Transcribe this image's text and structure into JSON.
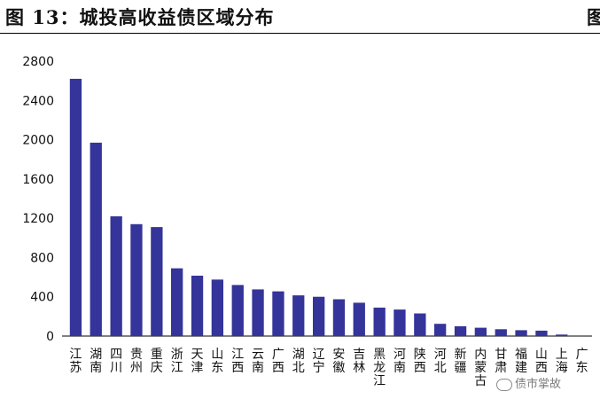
{
  "figure": {
    "title": "图 13：城投高收益债区域分布",
    "title_right_fragment": "图"
  },
  "watermark": {
    "text": "债市掌故"
  },
  "colors": {
    "bar": "#34349a",
    "axis": "#000000"
  },
  "chart_data": {
    "type": "bar",
    "title": "",
    "xlabel": "",
    "ylabel": "",
    "ylim": [
      0,
      2800
    ],
    "yticks": [
      0,
      400,
      800,
      1200,
      1600,
      2000,
      2400,
      2800
    ],
    "grid": false,
    "categories": [
      "江苏",
      "湖南",
      "四川",
      "贵州",
      "重庆",
      "浙江",
      "天津",
      "山东",
      "江西",
      "云南",
      "广西",
      "湖北",
      "辽宁",
      "安徽",
      "吉林",
      "黑龙江",
      "河南",
      "陕西",
      "河北",
      "新疆",
      "内蒙古",
      "甘肃",
      "福建",
      "山西",
      "上海",
      "广东"
    ],
    "values": [
      2620,
      1970,
      1220,
      1140,
      1110,
      690,
      615,
      575,
      520,
      475,
      455,
      415,
      400,
      375,
      340,
      290,
      270,
      230,
      125,
      100,
      85,
      70,
      60,
      55,
      15,
      0
    ]
  }
}
